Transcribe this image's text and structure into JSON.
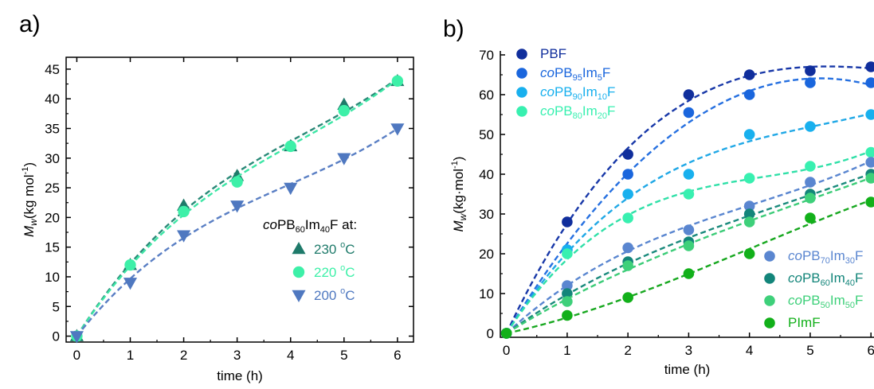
{
  "figure": {
    "panel_a_letter": "a)",
    "panel_b_letter": "b)"
  },
  "chart_data": [
    {
      "type": "scatter",
      "panel": "a)",
      "xlabel": "time (h)",
      "ylabel": "M_w (kg mol^-1)",
      "ylabel_parts": {
        "main": "M",
        "sub": "w",
        "unit_open": "(kg mol",
        "unit_sup": "-1",
        "unit_close": ")"
      },
      "xlim": [
        -0.2,
        6.3
      ],
      "ylim": [
        -1,
        47
      ],
      "xticks": [
        0,
        1,
        2,
        3,
        4,
        5,
        6
      ],
      "yticks": [
        0,
        5,
        10,
        15,
        20,
        25,
        30,
        35,
        40,
        45
      ],
      "legend_title": {
        "prefix": "co",
        "body": "PB",
        "sub1": "60",
        "mid": "Im",
        "sub2": "40",
        "end": "F at:"
      },
      "legend_position": "center-right",
      "fits": "dashed",
      "series": [
        {
          "name": "230 °C",
          "label_num": "230",
          "label_sup": "o",
          "label_unit": "C",
          "marker": "triangle-up",
          "color": "#1e7a6a",
          "fit_color": "#2a8a78",
          "x": [
            0,
            1,
            2,
            3,
            4,
            5,
            6
          ],
          "y": [
            0,
            12,
            22,
            27,
            32,
            39,
            43
          ]
        },
        {
          "name": "220 °C",
          "label_num": "220",
          "label_sup": "o",
          "label_unit": "C",
          "marker": "circle",
          "color": "#3df0a8",
          "fit_color": "#3ee6a6",
          "x": [
            0,
            1,
            2,
            3,
            4,
            5,
            6
          ],
          "y": [
            0,
            12,
            21,
            26,
            32,
            38,
            43
          ]
        },
        {
          "name": "200 °C",
          "label_num": "200",
          "label_sup": "o",
          "label_unit": "C",
          "marker": "triangle-down",
          "color": "#4f78c0",
          "fit_color": "#5a7fc4",
          "x": [
            0,
            1,
            2,
            3,
            4,
            5,
            6
          ],
          "y": [
            0,
            9,
            17,
            22,
            25,
            30,
            35
          ]
        }
      ]
    },
    {
      "type": "scatter",
      "panel": "b)",
      "xlabel": "time (h)",
      "ylabel": "M_w (kg·mol^-1)",
      "ylabel_parts": {
        "main": "M",
        "sub": "w",
        "unit_open": "(kg·mol",
        "unit_sup": "-1",
        "unit_close": ")"
      },
      "xlim": [
        -0.1,
        6.05
      ],
      "ylim": [
        -1,
        71
      ],
      "xticks": [
        0,
        1,
        2,
        3,
        4,
        5,
        6
      ],
      "yticks": [
        0,
        10,
        20,
        30,
        40,
        50,
        60,
        70
      ],
      "legend_position": "top-left and bottom-right",
      "fits": "dashed",
      "series": [
        {
          "name": "PBF",
          "label": {
            "co": "",
            "body": "PBF",
            "sub1": "",
            "mid": "",
            "sub2": "",
            "end": ""
          },
          "legend_group": "top",
          "color": "#102e9c",
          "fit_color": "#1838a8",
          "x": [
            0,
            1,
            2,
            3,
            4,
            5,
            6
          ],
          "y": [
            0,
            28,
            45,
            60,
            65,
            66,
            67
          ]
        },
        {
          "name": "coPB95Im5F",
          "label": {
            "co": "co",
            "body": "PB",
            "sub1": "95",
            "mid": "Im",
            "sub2": "5",
            "end": "F"
          },
          "legend_group": "top",
          "color": "#1a66dd",
          "fit_color": "#2670e0",
          "x": [
            0,
            1,
            2,
            3,
            4,
            5,
            6
          ],
          "y": [
            0,
            21,
            40,
            55.5,
            60,
            63,
            63
          ]
        },
        {
          "name": "coPB90Im10F",
          "label": {
            "co": "co",
            "body": "PB",
            "sub1": "90",
            "mid": "Im",
            "sub2": "10",
            "end": "F"
          },
          "legend_group": "top",
          "color": "#18b0ee",
          "fit_color": "#20a8e6",
          "x": [
            0,
            1,
            2,
            3,
            4,
            5,
            6
          ],
          "y": [
            0,
            21,
            35,
            40,
            50,
            52,
            55
          ]
        },
        {
          "name": "coPB80Im20F",
          "label": {
            "co": "co",
            "body": "PB",
            "sub1": "80",
            "mid": "Im",
            "sub2": "20",
            "end": "F"
          },
          "legend_group": "top",
          "color": "#38f0b0",
          "fit_color": "#30e0a8",
          "x": [
            0,
            1,
            2,
            3,
            4,
            5,
            6
          ],
          "y": [
            0,
            20,
            29,
            35,
            39,
            42,
            45.5
          ]
        },
        {
          "name": "coPB70Im30F",
          "label": {
            "co": "co",
            "body": "PB",
            "sub1": "70",
            "mid": "Im",
            "sub2": "30",
            "end": "F"
          },
          "legend_group": "bottom",
          "color": "#5a86d0",
          "fit_color": "#5a86d0",
          "x": [
            0,
            1,
            2,
            3,
            4,
            5,
            6
          ],
          "y": [
            0,
            12,
            21.5,
            26,
            32,
            38,
            43
          ]
        },
        {
          "name": "coPB60Im40F",
          "label": {
            "co": "co",
            "body": "PB",
            "sub1": "60",
            "mid": "Im",
            "sub2": "40",
            "end": "F"
          },
          "legend_group": "bottom",
          "color": "#13857a",
          "fit_color": "#1a8a7c",
          "x": [
            0,
            1,
            2,
            3,
            4,
            5,
            6
          ],
          "y": [
            0,
            10,
            18,
            23,
            30,
            35,
            40
          ]
        },
        {
          "name": "coPB50Im50F",
          "label": {
            "co": "co",
            "body": "PB",
            "sub1": "50",
            "mid": "Im",
            "sub2": "50",
            "end": "F"
          },
          "legend_group": "bottom",
          "color": "#3ed07a",
          "fit_color": "#3ccc78",
          "x": [
            0,
            1,
            2,
            3,
            4,
            5,
            6
          ],
          "y": [
            0,
            8,
            17,
            22,
            28,
            34,
            39
          ]
        },
        {
          "name": "PImF",
          "label": {
            "co": "",
            "body": "PImF",
            "sub1": "",
            "mid": "",
            "sub2": "",
            "end": ""
          },
          "legend_group": "bottom",
          "color": "#12b01a",
          "fit_color": "#18a820",
          "x": [
            0,
            1,
            2,
            3,
            4,
            5,
            6
          ],
          "y": [
            0,
            4.5,
            9,
            15,
            20,
            29,
            33
          ]
        }
      ]
    }
  ]
}
